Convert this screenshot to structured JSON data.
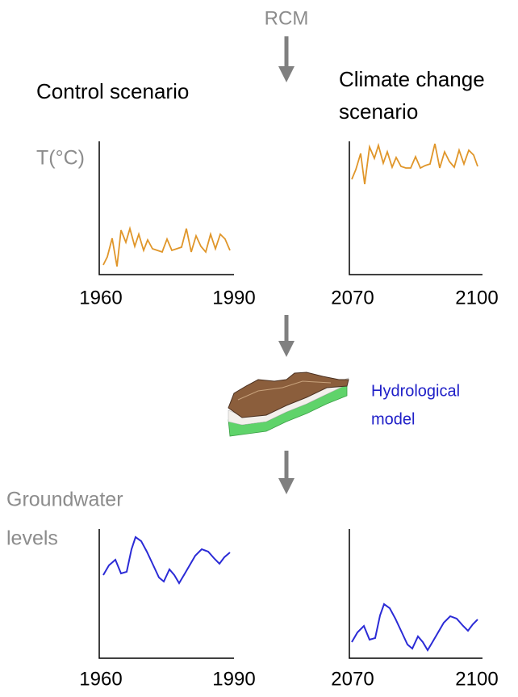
{
  "top": {
    "label": "RCM"
  },
  "control": {
    "title": "Control scenario",
    "x_start": "1960",
    "x_end": "1990"
  },
  "climate": {
    "title_lines": [
      "Climate change",
      "scenario"
    ],
    "x_start": "2070",
    "x_end": "2100"
  },
  "temperature": {
    "label": "T(°C)"
  },
  "model": {
    "label_lines": [
      "Hydrological",
      "model"
    ]
  },
  "groundwater": {
    "label_lines": [
      "Groundwater",
      "levels"
    ],
    "control": {
      "x_start": "1960",
      "x_end": "1990"
    },
    "climate": {
      "x_start": "2070",
      "x_end": "2100"
    }
  }
}
